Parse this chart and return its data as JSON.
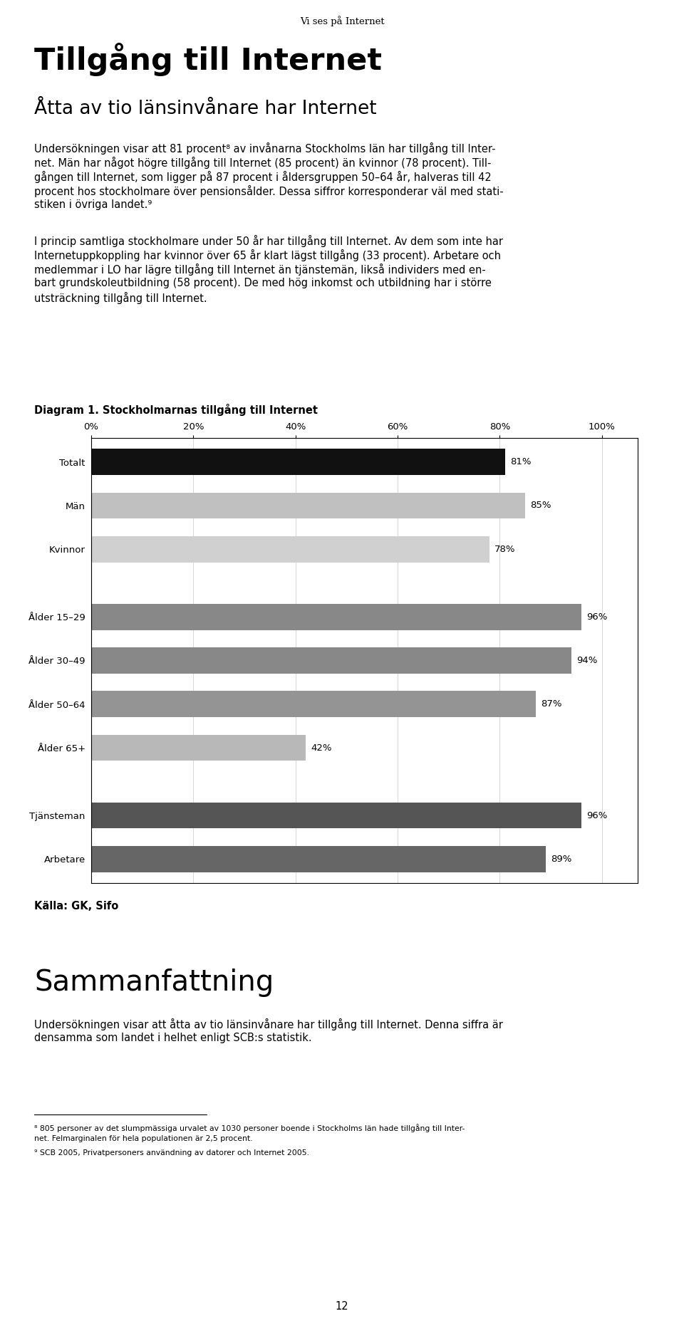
{
  "page_header": "Vi ses på Internet",
  "title": "Tillgång till Internet",
  "subtitle": "Åtta av tio länsinvånare har Internet",
  "body_text_1_line1": "Undersökningen visar att 81 procent⁸ av invånarna Stockholms län har tillgång till Inter-",
  "body_text_1_line2": "net. Män har något högre tillgång till Internet (85 procent) än kvinnor (78 procent). Till-",
  "body_text_1_line3": "gången till Internet, som ligger på 87 procent i åldersgruppen 50–64 år, halveras till 42",
  "body_text_1_line4": "procent hos stockholmare över pensionsålder. Dessa siffror korresponderar väl med stati-",
  "body_text_1_line5": "stiken i övriga landet.⁹",
  "body_text_2_line1": "I princip samtliga stockholmare under 50 år har tillgång till Internet. Av dem som inte har",
  "body_text_2_line2": "Internetuppkoppling har kvinnor över 65 år klart lägst tillgång (33 procent). Arbetare och",
  "body_text_2_line3": "medlemmar i LO har lägre tillgång till Internet än tjänstemän, likså individers med en-",
  "body_text_2_line4": "bart grundskoleutbildning (58 procent). De med hög inkomst och utbildning har i större",
  "body_text_2_line5": "utsträckning tillgång till Internet.",
  "diagram_title": "Diagram 1. Stockholmarnas tillgång till Internet",
  "categories": [
    "Totalt",
    "Män",
    "Kvinnor",
    "Ålder 15–29",
    "Ålder 30–49",
    "Ålder 50–64",
    "Ålder 65+",
    "Tjänsteman",
    "Arbetare"
  ],
  "values": [
    81,
    85,
    78,
    96,
    94,
    87,
    42,
    96,
    89
  ],
  "bar_colors": [
    "#111111",
    "#c0c0c0",
    "#d0d0d0",
    "#888888",
    "#888888",
    "#949494",
    "#b8b8b8",
    "#555555",
    "#666666"
  ],
  "label_texts": [
    "81%",
    "85%",
    "78%",
    "96%",
    "94%",
    "87%",
    "42%",
    "96%",
    "89%"
  ],
  "source_text": "Källa: GK, Sifo",
  "summary_title": "Sammanfattning",
  "summary_text_line1": "Undersökningen visar att åtta av tio länsinvånare har tillgång till Internet. Denna siffra är",
  "summary_text_line2": "densamma som landet i helhet enligt SCB:s statistik.",
  "footnote_1_line1": "⁸ 805 personer av det slumpmässiga urvalet av 1030 personer boende i Stockholms län hade tillgång till Inter-",
  "footnote_1_line2": "net. Felmarginalen för hela populationen är 2,5 procent.",
  "footnote_2": "⁹ SCB 2005, Privatpersoners användning av datorer och Internet 2005.",
  "page_number": "12",
  "xtick_labels": [
    "0%",
    "20%",
    "40%",
    "60%",
    "80%",
    "100%"
  ],
  "xtick_values": [
    0,
    20,
    40,
    60,
    80,
    100
  ],
  "background_color": "#ffffff"
}
